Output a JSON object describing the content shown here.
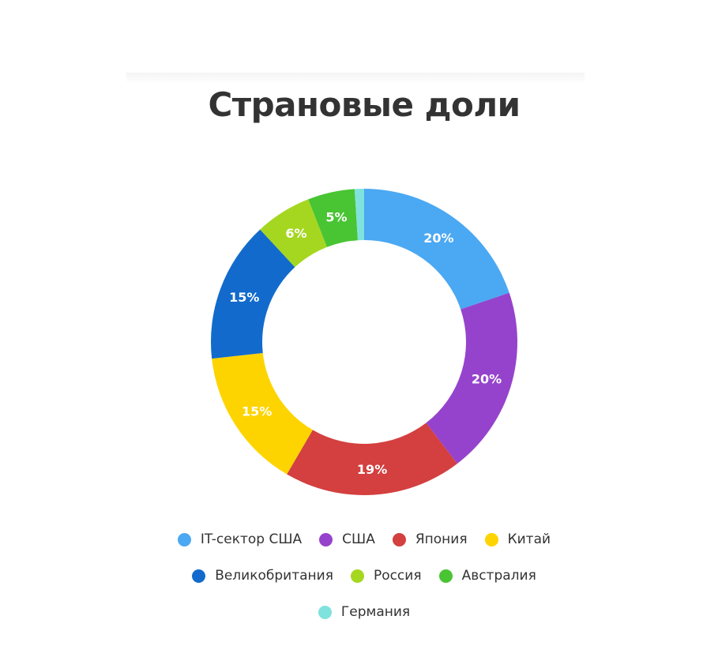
{
  "chart_data": {
    "type": "pie",
    "title": "Страновые доли",
    "legend_position": "bottom",
    "slices": [
      {
        "name": "IT-сектор США",
        "value": 20,
        "label": "20%",
        "color": "#4ba8f2"
      },
      {
        "name": "США",
        "value": 20,
        "label": "20%",
        "color": "#9543cc"
      },
      {
        "name": "Япония",
        "value": 19,
        "label": "19%",
        "color": "#d43f3f"
      },
      {
        "name": "Китай",
        "value": 15,
        "label": "15%",
        "color": "#fed400"
      },
      {
        "name": "Великобритания",
        "value": 15,
        "label": "15%",
        "color": "#126bcc"
      },
      {
        "name": "Россия",
        "value": 6,
        "label": "6%",
        "color": "#a5d720"
      },
      {
        "name": "Австралия",
        "value": 5,
        "label": "5%",
        "color": "#49c433"
      },
      {
        "name": "Германия",
        "value": 1,
        "label": "",
        "color": "#7fe2dd"
      }
    ]
  }
}
